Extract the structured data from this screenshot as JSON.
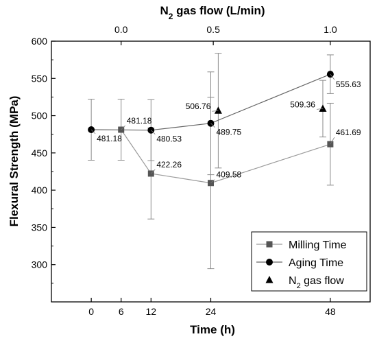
{
  "chart_data": {
    "type": "scatter",
    "xlabel": "Time (h)",
    "ylabel": "Flexural Strength (MPa)",
    "x2label": {
      "main": "N",
      "sub": "2",
      "rest": " gas flow (L/min)"
    },
    "xlim": [
      -8,
      56
    ],
    "ylim": [
      250,
      600
    ],
    "x_ticks": [
      0,
      6,
      12,
      24,
      48
    ],
    "y_ticks": [
      300,
      350,
      400,
      450,
      500,
      550,
      600
    ],
    "x2_ticks": [
      {
        "label": "0.0",
        "x": 6
      },
      {
        "label": "0.5",
        "x": 24.5
      },
      {
        "label": "1.0",
        "x": 48
      }
    ],
    "grid": false,
    "legend_position": "bottom-right",
    "series": [
      {
        "name": "Milling Time",
        "marker": "square",
        "color": "#555555",
        "line_color": "#9a9a9a",
        "connected": true,
        "points": [
          {
            "x": 6,
            "y": 481.18,
            "err": 41,
            "label": "481.18"
          },
          {
            "x": 12,
            "y": 422.26,
            "err": 61,
            "label": "422.26"
          },
          {
            "x": 24,
            "y": 409.58,
            "err": 115,
            "label": "409.58"
          },
          {
            "x": 48,
            "y": 461.69,
            "err": 55,
            "label": "461.69"
          }
        ]
      },
      {
        "name": "Aging Time",
        "marker": "circle",
        "color": "#000000",
        "line_color": "#666666",
        "connected": true,
        "points": [
          {
            "x": 0,
            "y": 481.18,
            "err": 41,
            "label": "481.18"
          },
          {
            "x": 12,
            "y": 480.53,
            "err": 41,
            "label": "480.53"
          },
          {
            "x": 24,
            "y": 489.75,
            "err": 69,
            "label": "489.75"
          },
          {
            "x": 48,
            "y": 555.63,
            "err": 26,
            "label": "555.63"
          }
        ]
      },
      {
        "name": "N2 gas flow",
        "legend_main": "N",
        "legend_sub": "2",
        "legend_rest": " gas flow",
        "marker": "triangle",
        "color": "#000000",
        "connected": false,
        "points": [
          {
            "x": 25.5,
            "y": 506.76,
            "err": 77,
            "label": "506.76"
          },
          {
            "x": 46.5,
            "y": 509.36,
            "err": 38,
            "label": "509.36"
          }
        ]
      }
    ]
  }
}
